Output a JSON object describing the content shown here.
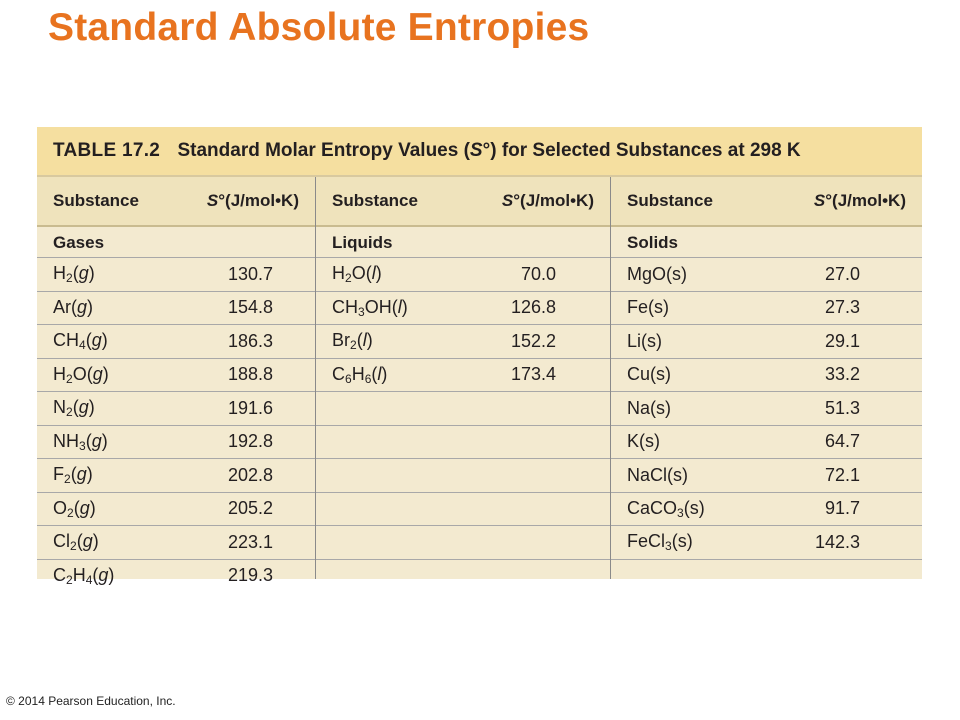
{
  "slide": {
    "title": "Standard Absolute Entropies"
  },
  "table": {
    "number": "TABLE 17.2",
    "caption_pre": "Standard Molar Entropy Values (",
    "caption_sym": "S",
    "caption_post": "°) for Selected Substances at 298 K",
    "header_substance": "Substance",
    "header_value_sym": "S",
    "header_value_rest": "°(J/mol•K)",
    "groups": [
      {
        "label": "Gases",
        "rows": [
          {
            "parts": [
              {
                "t": "H"
              },
              {
                "sub": "2"
              },
              {
                "t": "("
              },
              {
                "i": "g"
              },
              {
                "t": ")"
              }
            ],
            "value": "130.7"
          },
          {
            "parts": [
              {
                "t": "Ar("
              },
              {
                "i": "g"
              },
              {
                "t": ")"
              }
            ],
            "value": "154.8"
          },
          {
            "parts": [
              {
                "t": "CH"
              },
              {
                "sub": "4"
              },
              {
                "t": "("
              },
              {
                "i": "g"
              },
              {
                "t": ")"
              }
            ],
            "value": "186.3"
          },
          {
            "parts": [
              {
                "t": "H"
              },
              {
                "sub": "2"
              },
              {
                "t": "O("
              },
              {
                "i": "g"
              },
              {
                "t": ")"
              }
            ],
            "value": "188.8"
          },
          {
            "parts": [
              {
                "t": "N"
              },
              {
                "sub": "2"
              },
              {
                "t": "("
              },
              {
                "i": "g"
              },
              {
                "t": ")"
              }
            ],
            "value": "191.6"
          },
          {
            "parts": [
              {
                "t": "NH"
              },
              {
                "sub": "3"
              },
              {
                "t": "("
              },
              {
                "i": "g"
              },
              {
                "t": ")"
              }
            ],
            "value": "192.8"
          },
          {
            "parts": [
              {
                "t": "F"
              },
              {
                "sub": "2"
              },
              {
                "t": "("
              },
              {
                "i": "g"
              },
              {
                "t": ")"
              }
            ],
            "value": "202.8"
          },
          {
            "parts": [
              {
                "t": "O"
              },
              {
                "sub": "2"
              },
              {
                "t": "("
              },
              {
                "i": "g"
              },
              {
                "t": ")"
              }
            ],
            "value": "205.2"
          },
          {
            "parts": [
              {
                "t": "Cl"
              },
              {
                "sub": "2"
              },
              {
                "t": "("
              },
              {
                "i": "g"
              },
              {
                "t": ")"
              }
            ],
            "value": "223.1"
          },
          {
            "parts": [
              {
                "t": "C"
              },
              {
                "sub": "2"
              },
              {
                "t": "H"
              },
              {
                "sub": "4"
              },
              {
                "t": "("
              },
              {
                "i": "g"
              },
              {
                "t": ")"
              }
            ],
            "value": "219.3"
          }
        ]
      },
      {
        "label": "Liquids",
        "rows": [
          {
            "parts": [
              {
                "t": "H"
              },
              {
                "sub": "2"
              },
              {
                "t": "O("
              },
              {
                "i": "l"
              },
              {
                "t": ")"
              }
            ],
            "value": "70.0"
          },
          {
            "parts": [
              {
                "t": "CH"
              },
              {
                "sub": "3"
              },
              {
                "t": "OH("
              },
              {
                "i": "l"
              },
              {
                "t": ")"
              }
            ],
            "value": "126.8"
          },
          {
            "parts": [
              {
                "t": "Br"
              },
              {
                "sub": "2"
              },
              {
                "t": "("
              },
              {
                "i": "l"
              },
              {
                "t": ")"
              }
            ],
            "value": "152.2"
          },
          {
            "parts": [
              {
                "t": "C"
              },
              {
                "sub": "6"
              },
              {
                "t": "H"
              },
              {
                "sub": "6"
              },
              {
                "t": "("
              },
              {
                "i": "l"
              },
              {
                "t": ")"
              }
            ],
            "value": "173.4"
          }
        ]
      },
      {
        "label": "Solids",
        "rows": [
          {
            "parts": [
              {
                "t": "MgO(s)"
              }
            ],
            "value": "27.0"
          },
          {
            "parts": [
              {
                "t": "Fe(s)"
              }
            ],
            "value": "27.3"
          },
          {
            "parts": [
              {
                "t": "Li(s)"
              }
            ],
            "value": "29.1"
          },
          {
            "parts": [
              {
                "t": "Cu(s)"
              }
            ],
            "value": "33.2"
          },
          {
            "parts": [
              {
                "t": "Na(s)"
              }
            ],
            "value": "51.3"
          },
          {
            "parts": [
              {
                "t": "K(s)"
              }
            ],
            "value": "64.7"
          },
          {
            "parts": [
              {
                "t": "NaCl(s)"
              }
            ],
            "value": "72.1"
          },
          {
            "parts": [
              {
                "t": "CaCO"
              },
              {
                "sub": "3"
              },
              {
                "t": "(s)"
              }
            ],
            "value": "91.7"
          },
          {
            "parts": [
              {
                "t": "FeCl"
              },
              {
                "sub": "3"
              },
              {
                "t": "(s)"
              }
            ],
            "value": "142.3"
          }
        ]
      }
    ]
  },
  "footer": {
    "copyright": "© 2014 Pearson Education, Inc."
  }
}
